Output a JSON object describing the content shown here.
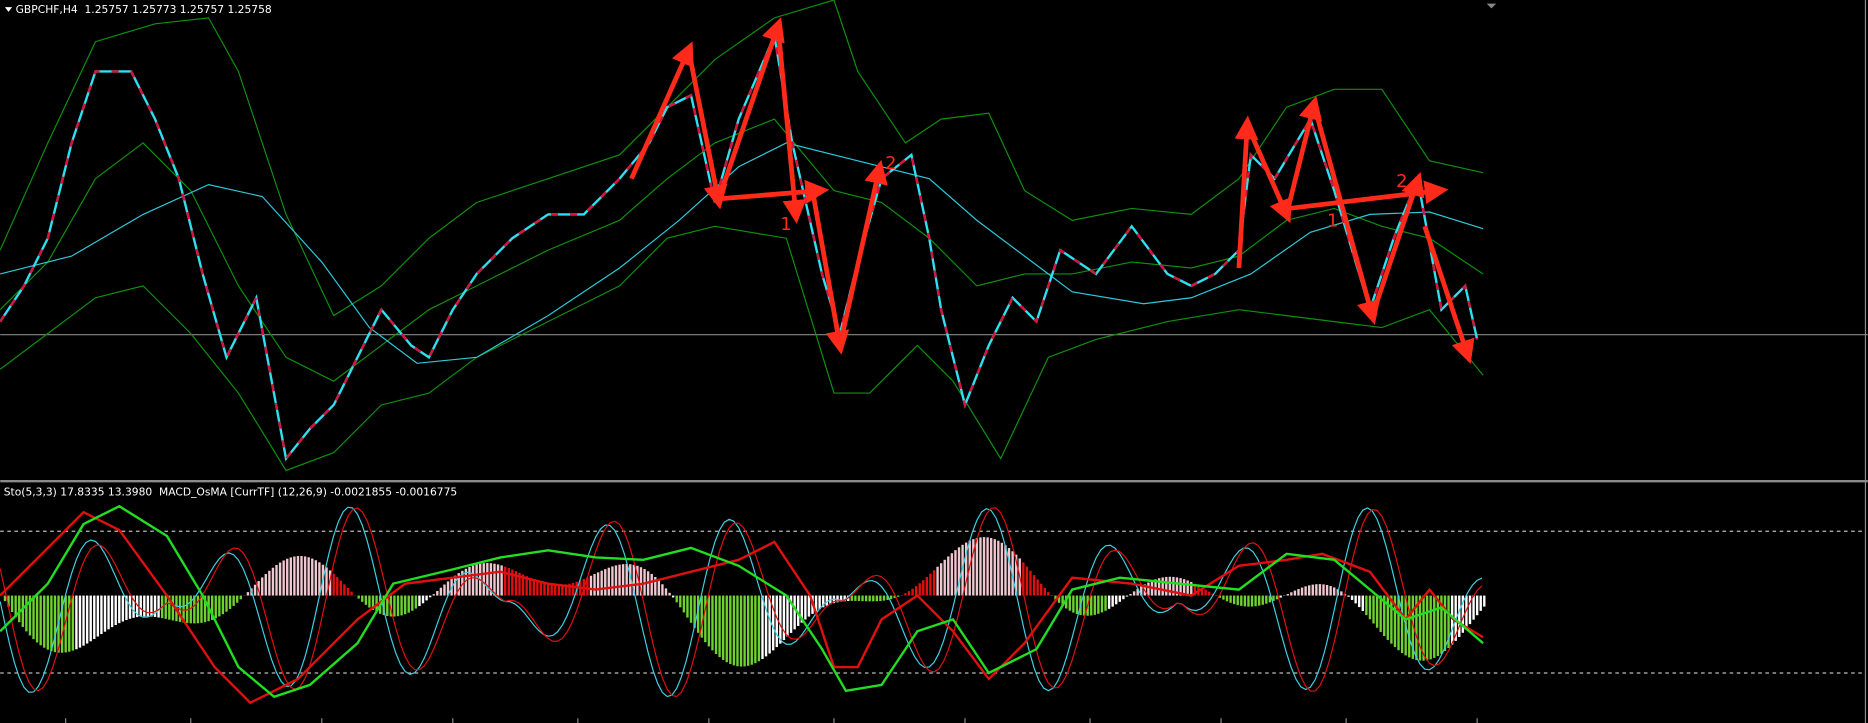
{
  "header": {
    "symbol_info": "GBPCHF,H4  1.25757 1.25773 1.25757 1.25758"
  },
  "indicator": {
    "label": "Sto(5,3,3) 17.8335 13.3980  MACD_OsMA [CurrTF] (12,26,9) -0.0021855 -0.0016775"
  },
  "annotations": [
    "1",
    "2",
    "1",
    "2"
  ]
}
